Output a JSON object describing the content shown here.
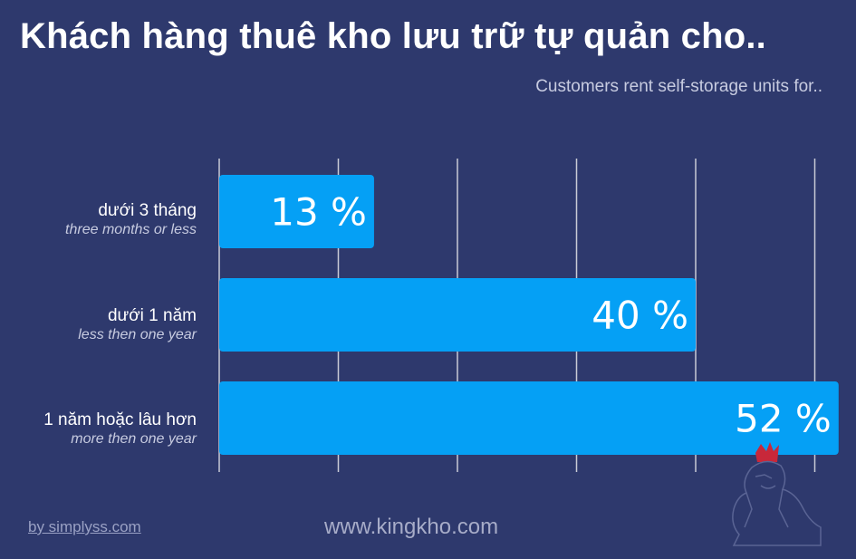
{
  "title": "Khách hàng thuê kho lưu trữ tự quản cho..",
  "subtitle": "Customers rent self-storage units for..",
  "footer": {
    "credit": "by simplyss.com",
    "website": "www.kingkho.com"
  },
  "colors": {
    "background": "#2e396d",
    "bar": "#05a0f5",
    "gridline": "#c9cbd6",
    "logo_crown": "#c8283a",
    "logo_outline": "#5a6494"
  },
  "chart_data": {
    "type": "bar",
    "orientation": "horizontal",
    "categories": [
      {
        "label": "dưới 3 tháng",
        "sublabel": "three months or less"
      },
      {
        "label": "dưới 1 năm",
        "sublabel": "less then one year"
      },
      {
        "label": "1 năm hoặc lâu hơn",
        "sublabel": "more then one year"
      }
    ],
    "values": [
      13,
      40,
      52
    ],
    "value_labels": [
      "13 %",
      "40 %",
      "52 %"
    ],
    "xlim": [
      0,
      60
    ],
    "grid": true,
    "gridline_values": [
      10,
      20,
      30,
      40,
      50
    ]
  }
}
